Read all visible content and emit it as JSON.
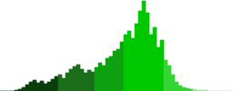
{
  "chart_data": {
    "type": "histogram",
    "bins": [
      0,
      4,
      8,
      12,
      16,
      20,
      24,
      28,
      32,
      36,
      40,
      44,
      48,
      52,
      56,
      60,
      64,
      68,
      72,
      76,
      80,
      84,
      88,
      92,
      96,
      100,
      104,
      108,
      112,
      116,
      120,
      124,
      128,
      132,
      136,
      140,
      144,
      148,
      152,
      156,
      160,
      164,
      168,
      172,
      176,
      180,
      184,
      188,
      192,
      196,
      200,
      204,
      208,
      212,
      216,
      220,
      224,
      228,
      232,
      236,
      240,
      244,
      248,
      252,
      256
    ],
    "counts": [
      0,
      0,
      0,
      0,
      1,
      2,
      4,
      7,
      10,
      12,
      9,
      11,
      8,
      10,
      13,
      16,
      18,
      14,
      20,
      24,
      27,
      29,
      24,
      20,
      23,
      21,
      26,
      31,
      28,
      36,
      38,
      44,
      46,
      54,
      62,
      66,
      58,
      74,
      88,
      99,
      86,
      62,
      70,
      48,
      56,
      34,
      28,
      18,
      10,
      6,
      4,
      3,
      2,
      2,
      1,
      1,
      1,
      0,
      0,
      0,
      0,
      0,
      0,
      0
    ],
    "colors": [
      "#0b3d0b",
      "#0b3d0b",
      "#0b3d0b",
      "#0b3d0b",
      "#0b3d0b",
      "#0b3d0b",
      "#0b3d0b",
      "#0b3d0b",
      "#0b3d0b",
      "#0b3d0b",
      "#0b3d0b",
      "#0b3d0b",
      "#0b3d0b",
      "#0b3d0b",
      "#0b3d0b",
      "#0b3d0b",
      "#1a6e1a",
      "#1a6e1a",
      "#1a6e1a",
      "#1a6e1a",
      "#1a6e1a",
      "#1a6e1a",
      "#1a6e1a",
      "#1a6e1a",
      "#1a6e1a",
      "#1a6e1a",
      "#0fa00f",
      "#0fa00f",
      "#0fa00f",
      "#0fa00f",
      "#0fa00f",
      "#0fa00f",
      "#0fa00f",
      "#0fa00f",
      "#00c800",
      "#00c800",
      "#00c800",
      "#00c800",
      "#00c800",
      "#00c800",
      "#00c800",
      "#00c800",
      "#00c800",
      "#00c800",
      "#00c800",
      "#33d633",
      "#33d633",
      "#33d633",
      "#33d633",
      "#33d633",
      "#33d633",
      "#33d633",
      "#33d633",
      "#99ea99",
      "#99ea99",
      "#99ea99",
      "#99ea99",
      "#99ea99",
      "#99ea99",
      "#99ea99",
      "#99ea99",
      "#99ea99",
      "#99ea99",
      "#99ea99"
    ],
    "ylim": [
      0,
      100
    ],
    "grid": false,
    "tick_labels": false
  }
}
